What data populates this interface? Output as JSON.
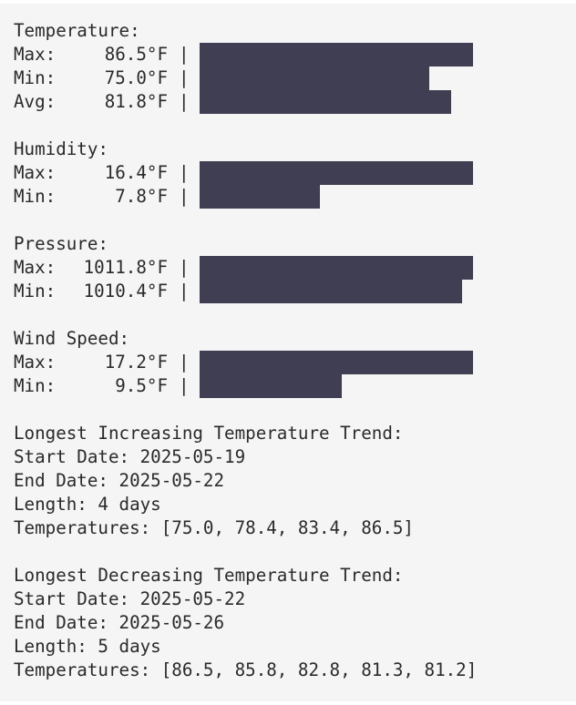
{
  "stats": {
    "temperature": {
      "title": "Temperature:",
      "max": {
        "label": "Max:",
        "value": "86.5°F",
        "sep": "|",
        "level": 1.0
      },
      "min": {
        "label": "Min:",
        "value": "75.0°F",
        "sep": "|",
        "level": 0.84
      },
      "avg": {
        "label": "Avg:",
        "value": "81.8°F",
        "sep": "|",
        "level": 0.92
      }
    },
    "humidity": {
      "title": "Humidity:",
      "max": {
        "label": "Max:",
        "value": "16.4°F",
        "sep": "|",
        "level": 1.0
      },
      "min": {
        "label": "Min:",
        "value": "7.8°F",
        "sep": "|",
        "level": 0.44
      }
    },
    "pressure": {
      "title": "Pressure:",
      "max": {
        "label": "Max:",
        "value": "1011.8°F",
        "sep": "|",
        "level": 1.0
      },
      "min": {
        "label": "Min:",
        "value": "1010.4°F",
        "sep": "|",
        "level": 0.96
      }
    },
    "wind": {
      "title": "Wind Speed:",
      "max": {
        "label": "Max:",
        "value": "17.2°F",
        "sep": "|",
        "level": 1.0
      },
      "min": {
        "label": "Min:",
        "value": "9.5°F",
        "sep": "|",
        "level": 0.52
      }
    }
  },
  "trends": {
    "increasing": {
      "title": "Longest Increasing Temperature Trend:",
      "start": "Start Date: 2025-05-19",
      "end": "End Date: 2025-05-22",
      "length": "Length: 4 days",
      "temps": "Temperatures: [75.0, 78.4, 83.4, 86.5]"
    },
    "decreasing": {
      "title": "Longest Decreasing Temperature Trend:",
      "start": "Start Date: 2025-05-22",
      "end": "End Date: 2025-05-26",
      "length": "Length: 5 days",
      "temps": "Temperatures: [86.5, 85.8, 82.8, 81.3, 81.2]"
    }
  },
  "colors": {
    "background": "#f5f5f5",
    "text": "#2a2a2a",
    "bar": "#3f3e52"
  }
}
